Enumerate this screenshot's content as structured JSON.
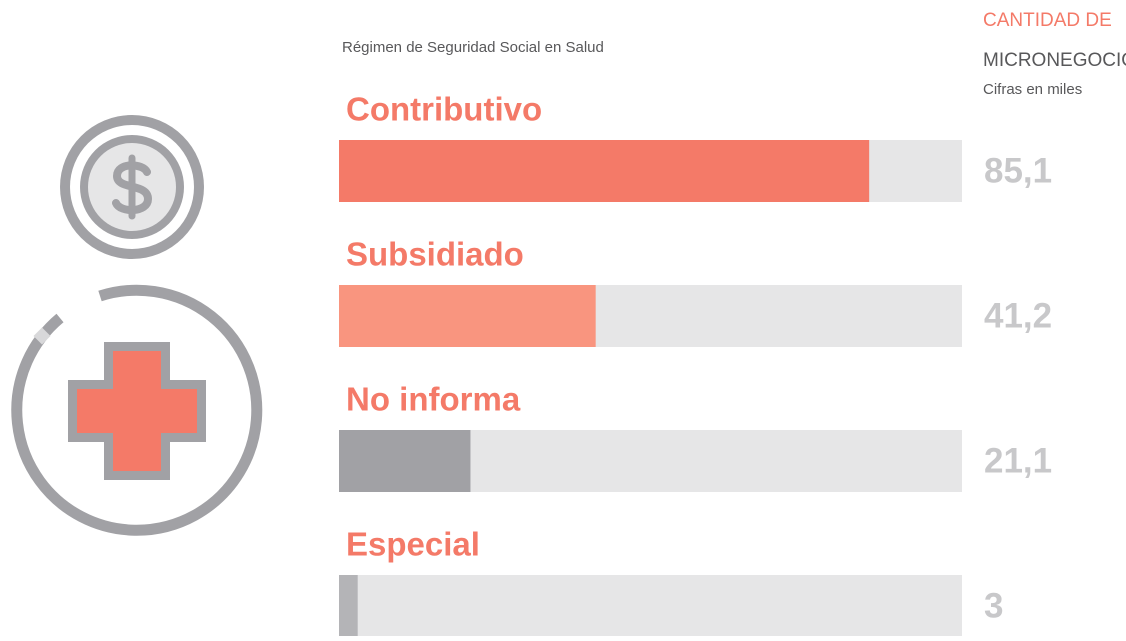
{
  "chart_data": {
    "type": "hbar",
    "title": "Régimen de Seguridad Social en Salud",
    "value_header": [
      "CANTIDAD DE",
      "MICRONEGOCIOS"
    ],
    "note": "Cifras en miles",
    "categories": [
      "Contributivo",
      "Subsidiado",
      "No informa",
      "Especial"
    ],
    "values": [
      85.1,
      41.2,
      21.1,
      3
    ],
    "value_labels": [
      "85,1",
      "41,2",
      "21,1",
      "3"
    ],
    "colors": [
      "#f47a68",
      "#f9957f",
      "#a1a1a5",
      "#b4b4b7"
    ],
    "track_color": "#e6e6e7",
    "xlim": [
      0,
      100
    ]
  }
}
